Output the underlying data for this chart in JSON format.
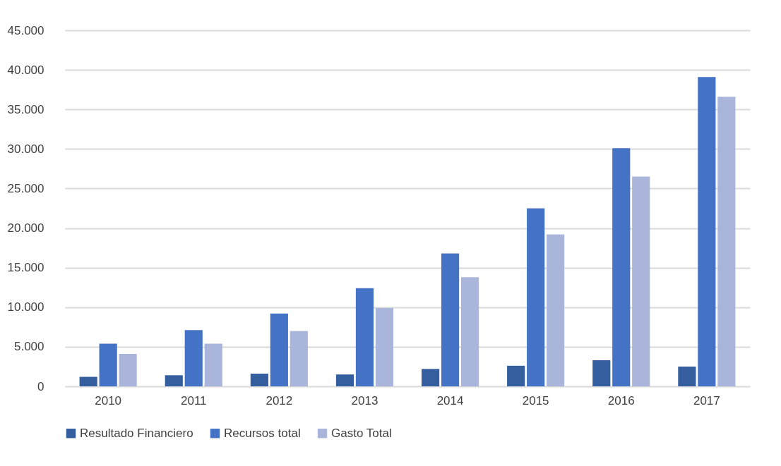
{
  "chart_data": {
    "type": "bar",
    "categories": [
      "2010",
      "2011",
      "2012",
      "2013",
      "2014",
      "2015",
      "2016",
      "2017"
    ],
    "series": [
      {
        "name": "Resultado Financiero",
        "color": "#355e9f",
        "values": [
          1200,
          1400,
          1600,
          1500,
          2200,
          2600,
          3300,
          2500
        ]
      },
      {
        "name": "Recursos total",
        "color": "#4472c4",
        "values": [
          5400,
          7100,
          9200,
          12400,
          16800,
          22500,
          30100,
          39100
        ]
      },
      {
        "name": "Gasto Total",
        "color": "#a9b5da",
        "values": [
          4100,
          5400,
          7000,
          9900,
          13800,
          19200,
          26500,
          36600
        ]
      }
    ],
    "ylim": [
      0,
      45000
    ],
    "yticks": [
      {
        "value": 0,
        "label": "0"
      },
      {
        "value": 5000,
        "label": "5.000"
      },
      {
        "value": 10000,
        "label": "10.000"
      },
      {
        "value": 15000,
        "label": "15.000"
      },
      {
        "value": 20000,
        "label": "20.000"
      },
      {
        "value": 25000,
        "label": "25.000"
      },
      {
        "value": 30000,
        "label": "30.000"
      },
      {
        "value": 35000,
        "label": "35.000"
      },
      {
        "value": 40000,
        "label": "40.000"
      },
      {
        "value": 45000,
        "label": "45.000"
      }
    ],
    "grid": "y",
    "legend": "bottom"
  }
}
